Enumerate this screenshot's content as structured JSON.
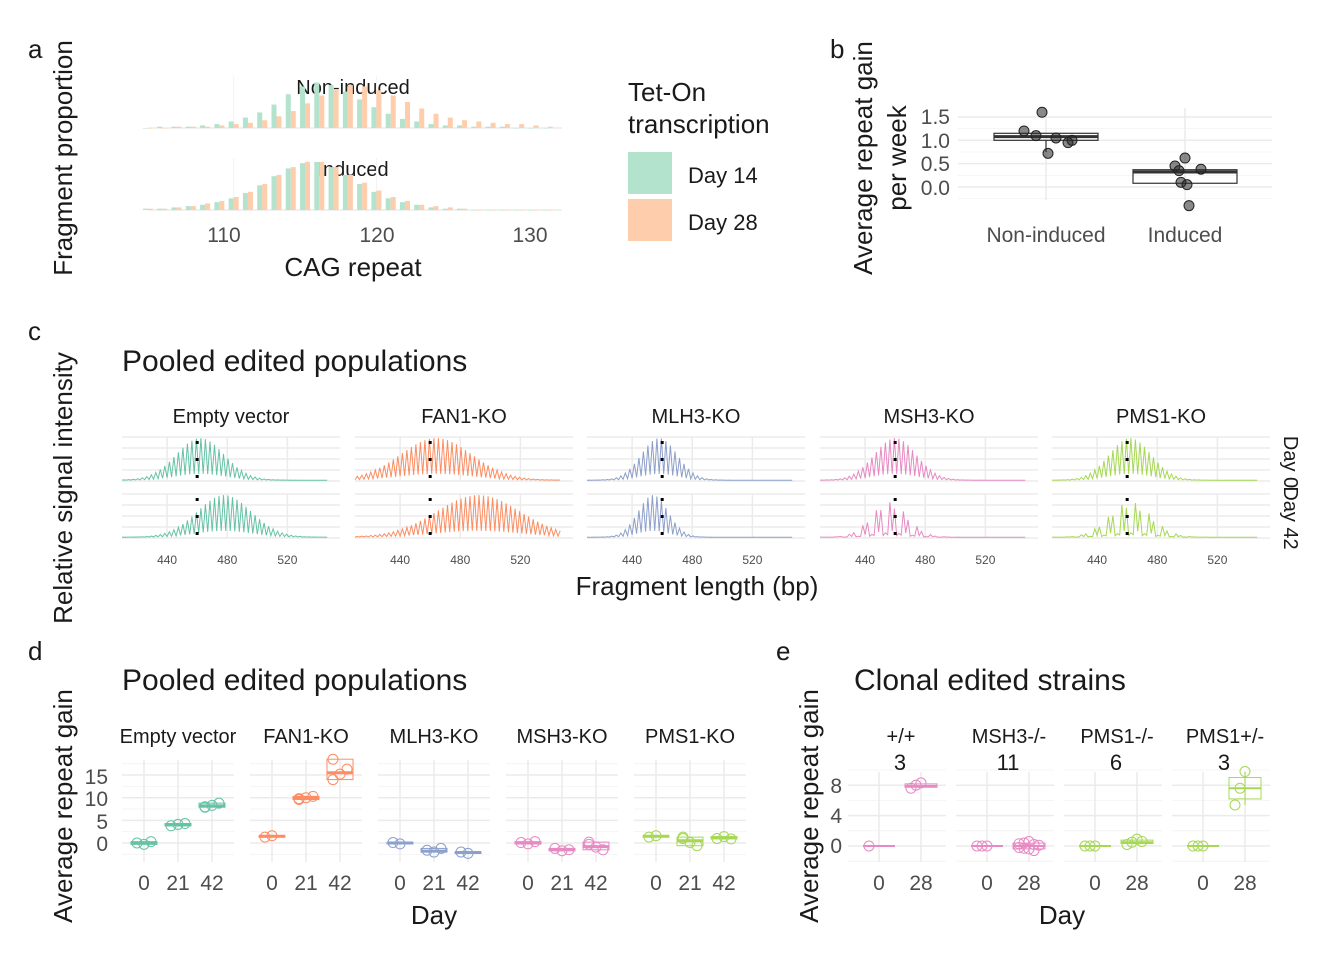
{
  "panels": {
    "a": {
      "label": "a"
    },
    "b": {
      "label": "b"
    },
    "c": {
      "label": "c"
    },
    "d": {
      "label": "d"
    },
    "e": {
      "label": "e"
    }
  },
  "chart_data": [
    {
      "panel": "a",
      "type": "bar",
      "xlabel": "CAG repeat",
      "ylabel": "Fragment proportion",
      "facets": [
        "Non-induced",
        "Induced"
      ],
      "x_ticks": [
        110,
        120,
        130
      ],
      "xlim": [
        104,
        133
      ],
      "legend": {
        "title": "Tet-On transcription",
        "entries": [
          "Day 14",
          "Day 28"
        ],
        "colors": [
          "#b3e2cd",
          "#fdcdac"
        ],
        "position": "right"
      },
      "categories": [
        104,
        105,
        106,
        107,
        108,
        109,
        110,
        111,
        112,
        113,
        114,
        115,
        116,
        117,
        118,
        119,
        120,
        121,
        122,
        123,
        124,
        125,
        126,
        127,
        128,
        129,
        130,
        131,
        132
      ],
      "series": [
        {
          "facet": "Non-induced",
          "name": "Day 14",
          "values": [
            0,
            0.01,
            0.01,
            0.01,
            0.02,
            0.03,
            0.05,
            0.08,
            0.12,
            0.18,
            0.26,
            0.32,
            0.35,
            0.33,
            0.28,
            0.22,
            0.16,
            0.11,
            0.07,
            0.05,
            0.03,
            0.02,
            0.02,
            0.01,
            0.01,
            0.01,
            0,
            0,
            0
          ]
        },
        {
          "facet": "Non-induced",
          "name": "Day 28",
          "values": [
            0,
            0,
            0.01,
            0.01,
            0.01,
            0.02,
            0.03,
            0.04,
            0.06,
            0.09,
            0.13,
            0.19,
            0.25,
            0.3,
            0.33,
            0.32,
            0.29,
            0.25,
            0.2,
            0.15,
            0.11,
            0.08,
            0.06,
            0.05,
            0.04,
            0.03,
            0.03,
            0.02,
            0.01
          ]
        },
        {
          "facet": "Induced",
          "name": "Day 14",
          "values": [
            0.01,
            0.01,
            0.02,
            0.03,
            0.04,
            0.06,
            0.09,
            0.13,
            0.19,
            0.26,
            0.32,
            0.36,
            0.37,
            0.33,
            0.27,
            0.2,
            0.14,
            0.09,
            0.06,
            0.04,
            0.02,
            0.01,
            0.01,
            0,
            0,
            0,
            0,
            0,
            0
          ]
        },
        {
          "facet": "Induced",
          "name": "Day 28",
          "values": [
            0.01,
            0.01,
            0.02,
            0.03,
            0.05,
            0.07,
            0.1,
            0.14,
            0.2,
            0.27,
            0.33,
            0.37,
            0.37,
            0.33,
            0.27,
            0.21,
            0.15,
            0.1,
            0.07,
            0.04,
            0.03,
            0.02,
            0.01,
            0,
            0,
            0,
            0,
            0,
            0
          ]
        }
      ]
    },
    {
      "panel": "b",
      "type": "scatter",
      "ylabel": "Average repeat gain per week",
      "categories": [
        "Non-induced",
        "Induced"
      ],
      "y_ticks": [
        "1.5",
        "1.0",
        "0.5",
        "0.0"
      ],
      "ylim": [
        -0.5,
        1.7
      ],
      "boxes": [
        {
          "category": "Non-induced",
          "q1": 1.0,
          "median": 1.08,
          "q3": 1.15,
          "whisker_low": 0.75,
          "whisker_high": 1.15
        },
        {
          "category": "Induced",
          "q1": 0.08,
          "median": 0.32,
          "q3": 0.37,
          "whisker_low": 0.08,
          "whisker_high": 0.37
        }
      ],
      "points": [
        {
          "category": "Non-induced",
          "values": [
            1.6,
            1.2,
            1.1,
            1.05,
            1.0,
            0.95,
            0.72
          ]
        },
        {
          "category": "Induced",
          "values": [
            0.62,
            0.45,
            0.35,
            0.38,
            0.1,
            0.05,
            -0.4
          ]
        }
      ]
    },
    {
      "panel": "c",
      "type": "line",
      "title": "Pooled edited populations",
      "xlabel": "Fragment length (bp)",
      "ylabel": "Relative signal intensity",
      "x_ticks": [
        440,
        480,
        520
      ],
      "xlim": [
        410,
        555
      ],
      "row_labels": [
        "Day 0",
        "Day 42"
      ],
      "vline_x": 460,
      "facets": [
        {
          "name": "Empty vector",
          "color": "#66c2a5",
          "rows": [
            {
              "peak": 462,
              "spread": 16,
              "mod": 0
            },
            {
              "peak": 478,
              "spread": 18,
              "mod": 0
            }
          ]
        },
        {
          "name": "FAN1-KO",
          "color": "#fc8d62",
          "rows": [
            {
              "peak": 464,
              "spread": 24,
              "mod": 0
            },
            {
              "peak": 492,
              "spread": 28,
              "mod": 0
            }
          ]
        },
        {
          "name": "MLH3-KO",
          "color": "#8da0cb",
          "rows": [
            {
              "peak": 458,
              "spread": 12,
              "mod": 0
            },
            {
              "peak": 454,
              "spread": 10,
              "mod": 0
            }
          ]
        },
        {
          "name": "MSH3-KO",
          "color": "#e78ac3",
          "rows": [
            {
              "peak": 460,
              "spread": 14,
              "mod": 0
            },
            {
              "peak": 456,
              "spread": 12,
              "mod": 1
            }
          ]
        },
        {
          "name": "PMS1-KO",
          "color": "#a6d854",
          "rows": [
            {
              "peak": 462,
              "spread": 14,
              "mod": 0
            },
            {
              "peak": 462,
              "spread": 14,
              "mod": 1
            }
          ]
        }
      ]
    },
    {
      "panel": "d",
      "type": "scatter",
      "title": "Pooled edited populations",
      "xlabel": "Day",
      "ylabel": "Average repeat gain",
      "x_ticks": [
        "0",
        "21",
        "42"
      ],
      "y_ticks": [
        "15",
        "10",
        "5",
        "0"
      ],
      "ylim": [
        -5,
        19
      ],
      "facets": [
        {
          "name": "Empty vector",
          "color": "#66c2a5",
          "groups": [
            {
              "day": "0",
              "median": 0,
              "points": [
                0,
                -0.3,
                0.3
              ]
            },
            {
              "day": "21",
              "median": 4,
              "points": [
                3.8,
                4.1,
                4.3
              ]
            },
            {
              "day": "42",
              "median": 8.2,
              "points": [
                8.0,
                8.3,
                8.8,
                7.9
              ]
            }
          ]
        },
        {
          "name": "FAN1-KO",
          "color": "#fc8d62",
          "groups": [
            {
              "day": "0",
              "median": 1.5,
              "points": [
                1.3,
                1.6
              ]
            },
            {
              "day": "21",
              "median": 10,
              "points": [
                9.6,
                10.0,
                10.3,
                9.8
              ]
            },
            {
              "day": "42",
              "median": 15.5,
              "points": [
                14.0,
                15.2,
                16.3,
                18.5
              ]
            }
          ]
        },
        {
          "name": "MLH3-KO",
          "color": "#8da0cb",
          "groups": [
            {
              "day": "0",
              "median": 0,
              "points": [
                0.1,
                -0.2
              ]
            },
            {
              "day": "21",
              "median": -1.8,
              "points": [
                -1.6,
                -2.0,
                -1.2
              ]
            },
            {
              "day": "42",
              "median": -2.1,
              "points": [
                -2.0,
                -2.3
              ]
            }
          ]
        },
        {
          "name": "MSH3-KO",
          "color": "#e78ac3",
          "groups": [
            {
              "day": "0",
              "median": 0,
              "points": [
                0.1,
                -0.2,
                0.3
              ]
            },
            {
              "day": "21",
              "median": -1.5,
              "points": [
                -1.2,
                -1.7,
                -1.5
              ]
            },
            {
              "day": "42",
              "median": -0.8,
              "points": [
                -0.3,
                -0.9,
                -1.5,
                0.2
              ]
            }
          ]
        },
        {
          "name": "PMS1-KO",
          "color": "#a6d854",
          "groups": [
            {
              "day": "0",
              "median": 1.5,
              "points": [
                1.3,
                1.6
              ]
            },
            {
              "day": "21",
              "median": 0.5,
              "points": [
                1.0,
                0.1,
                -0.6,
                1.3
              ]
            },
            {
              "day": "42",
              "median": 1.2,
              "points": [
                1.0,
                1.4,
                0.9
              ]
            }
          ]
        }
      ]
    },
    {
      "panel": "e",
      "type": "scatter",
      "title": "Clonal edited strains",
      "xlabel": "Day",
      "ylabel": "Average repeat gain",
      "x_ticks": [
        "0",
        "28"
      ],
      "y_ticks": [
        "8",
        "4",
        "0"
      ],
      "ylim": [
        -2,
        10
      ],
      "facets": [
        {
          "name": "+/+",
          "count": "3",
          "color": "#e78ac3",
          "groups": [
            {
              "day": "0",
              "median": 0,
              "points": [
                0
              ]
            },
            {
              "day": "28",
              "median": 7.9,
              "points": [
                7.6,
                8.0,
                8.3
              ]
            }
          ]
        },
        {
          "name": "MSH3-/-",
          "count": "11",
          "color": "#e78ac3",
          "groups": [
            {
              "day": "0",
              "median": 0,
              "points": [
                0,
                0,
                0
              ]
            },
            {
              "day": "28",
              "median": 0,
              "points": [
                0.3,
                -0.3,
                0.6,
                -0.6,
                0.1,
                -0.2,
                0.4,
                -0.4,
                0.2
              ]
            }
          ]
        },
        {
          "name": "PMS1-/-",
          "count": "6",
          "color": "#a6d854",
          "groups": [
            {
              "day": "0",
              "median": 0,
              "points": [
                0,
                0,
                0
              ]
            },
            {
              "day": "28",
              "median": 0.5,
              "points": [
                0.2,
                0.5,
                0.9,
                0.6
              ]
            }
          ]
        },
        {
          "name": "PMS1+/-",
          "count": "3",
          "color": "#a6d854",
          "groups": [
            {
              "day": "0",
              "median": 0,
              "points": [
                0,
                0,
                0
              ]
            },
            {
              "day": "28",
              "median": 7.6,
              "points": [
                5.4,
                7.6,
                9.8
              ]
            }
          ]
        }
      ]
    }
  ]
}
